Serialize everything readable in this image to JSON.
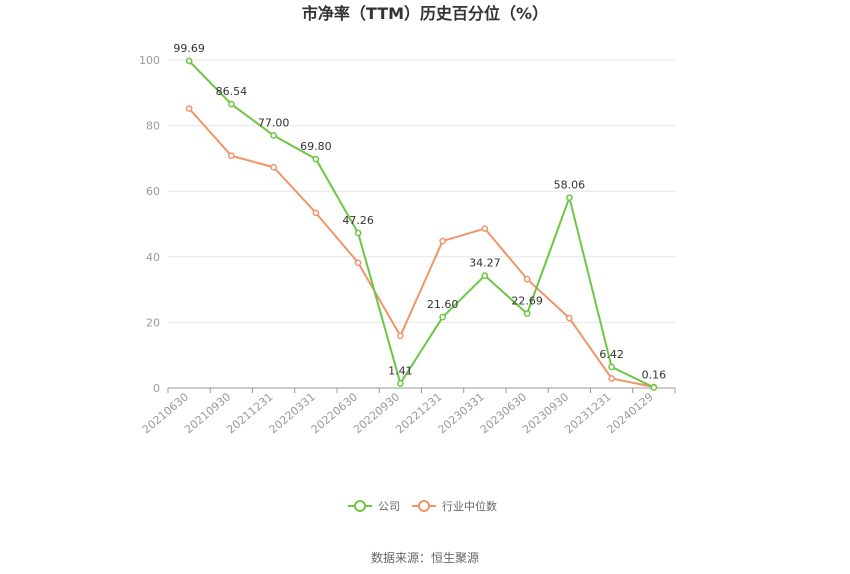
{
  "chart_data": {
    "type": "line",
    "title": "市净率（TTM）历史百分位（%）",
    "categories": [
      "20210630",
      "20210930",
      "20211231",
      "20220331",
      "20220630",
      "20220930",
      "20221231",
      "20230331",
      "20230630",
      "20230930",
      "20231231",
      "20240129"
    ],
    "ylim": [
      0,
      100
    ],
    "yticks": [
      0,
      20,
      40,
      60,
      80,
      100
    ],
    "grid": true,
    "legend_position": "bottom-center",
    "series": [
      {
        "name": "公司",
        "color": "#6cc644",
        "values": [
          99.69,
          86.54,
          77.0,
          69.8,
          47.26,
          1.41,
          21.6,
          34.27,
          22.69,
          58.06,
          6.42,
          0.16
        ],
        "labels": [
          "99.69",
          "86.54",
          "77.00",
          "69.80",
          "47.26",
          "1.41",
          "21.60",
          "34.27",
          "22.69",
          "58.06",
          "6.42",
          "0.16"
        ]
      },
      {
        "name": "行业中位数",
        "color": "#f0956a",
        "values": [
          85.2,
          70.8,
          67.3,
          53.4,
          38.2,
          15.9,
          44.8,
          48.6,
          33.2,
          21.3,
          2.9,
          0.3
        ]
      }
    ]
  },
  "source_text": "数据来源：恒生聚源"
}
